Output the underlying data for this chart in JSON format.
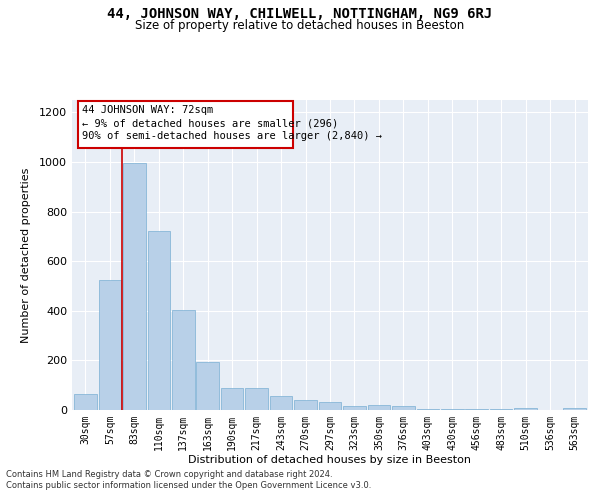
{
  "title1": "44, JOHNSON WAY, CHILWELL, NOTTINGHAM, NG9 6RJ",
  "title2": "Size of property relative to detached houses in Beeston",
  "xlabel": "Distribution of detached houses by size in Beeston",
  "ylabel": "Number of detached properties",
  "categories": [
    "30sqm",
    "57sqm",
    "83sqm",
    "110sqm",
    "137sqm",
    "163sqm",
    "190sqm",
    "217sqm",
    "243sqm",
    "270sqm",
    "297sqm",
    "323sqm",
    "350sqm",
    "376sqm",
    "403sqm",
    "430sqm",
    "456sqm",
    "483sqm",
    "510sqm",
    "536sqm",
    "563sqm"
  ],
  "values": [
    65,
    525,
    995,
    720,
    405,
    195,
    90,
    90,
    58,
    40,
    32,
    15,
    20,
    18,
    5,
    5,
    3,
    3,
    10,
    0,
    10
  ],
  "bar_color": "#b8d0e8",
  "bar_edgecolor": "#7aafd4",
  "vline_x": 1.5,
  "vline_color": "#cc0000",
  "annotation_line1": "44 JOHNSON WAY: 72sqm",
  "annotation_line2": "← 9% of detached houses are smaller (296)",
  "annotation_line3": "90% of semi-detached houses are larger (2,840) →",
  "annotation_box_facecolor": "#ffffff",
  "annotation_box_edgecolor": "#cc0000",
  "ylim": [
    0,
    1250
  ],
  "yticks": [
    0,
    200,
    400,
    600,
    800,
    1000,
    1200
  ],
  "bg_color": "#e8eef6",
  "grid_color": "#ffffff",
  "footer1": "Contains HM Land Registry data © Crown copyright and database right 2024.",
  "footer2": "Contains public sector information licensed under the Open Government Licence v3.0."
}
